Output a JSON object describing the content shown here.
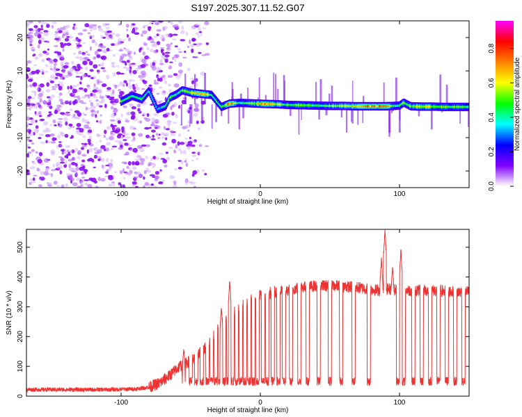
{
  "title": "S197.2025.307.11.52.G07",
  "chart_data": [
    {
      "type": "heatmap",
      "name": "spectrogram",
      "xlabel": "Height of straight line (km)",
      "ylabel": "Frequency (Hz)",
      "xlim": [
        -168,
        150
      ],
      "ylim": [
        -25,
        25
      ],
      "xticks": [
        -100,
        0,
        100
      ],
      "xtick_labels": [
        "-100",
        "0",
        "100"
      ],
      "yticks": [
        -20,
        -10,
        0,
        10,
        20
      ],
      "ytick_labels": [
        "-20",
        "-10",
        "0",
        "10",
        "20"
      ],
      "ridge": [
        {
          "x": -100,
          "f": 0.8,
          "a": 0.5
        },
        {
          "x": -92,
          "f": 2.5,
          "a": 0.45
        },
        {
          "x": -85,
          "f": 1.5,
          "a": 0.5
        },
        {
          "x": -80,
          "f": 4.0,
          "a": 0.4
        },
        {
          "x": -74,
          "f": -1.5,
          "a": 0.35
        },
        {
          "x": -68,
          "f": -0.5,
          "a": 0.45
        },
        {
          "x": -65,
          "f": 2.0,
          "a": 0.55
        },
        {
          "x": -60,
          "f": 3.0,
          "a": 0.4
        },
        {
          "x": -56,
          "f": 4.2,
          "a": 0.55
        },
        {
          "x": -50,
          "f": 3.5,
          "a": 0.6
        },
        {
          "x": -44,
          "f": 3.2,
          "a": 0.75
        },
        {
          "x": -40,
          "f": 3.0,
          "a": 0.7
        },
        {
          "x": -35,
          "f": 2.8,
          "a": 0.5
        },
        {
          "x": -28,
          "f": -0.8,
          "a": 0.45
        },
        {
          "x": -22,
          "f": 0.2,
          "a": 0.85
        },
        {
          "x": -15,
          "f": 0.4,
          "a": 0.45
        },
        {
          "x": -8,
          "f": 0.3,
          "a": 0.55
        },
        {
          "x": 3,
          "f": 0.1,
          "a": 0.75
        },
        {
          "x": 12,
          "f": 0.0,
          "a": 0.6
        },
        {
          "x": 20,
          "f": -0.2,
          "a": 0.5
        },
        {
          "x": 30,
          "f": -0.3,
          "a": 0.55
        },
        {
          "x": 40,
          "f": -0.4,
          "a": 0.5
        },
        {
          "x": 50,
          "f": -0.5,
          "a": 0.55
        },
        {
          "x": 60,
          "f": -0.5,
          "a": 0.65
        },
        {
          "x": 68,
          "f": -0.6,
          "a": 0.7
        },
        {
          "x": 76,
          "f": -0.6,
          "a": 0.8
        },
        {
          "x": 84,
          "f": -0.6,
          "a": 0.75
        },
        {
          "x": 90,
          "f": -0.6,
          "a": 0.85
        },
        {
          "x": 96,
          "f": -0.5,
          "a": 0.45
        },
        {
          "x": 100,
          "f": -0.4,
          "a": 0.5
        },
        {
          "x": 103,
          "f": 0.5,
          "a": 0.55
        },
        {
          "x": 108,
          "f": -0.6,
          "a": 0.6
        },
        {
          "x": 116,
          "f": -0.7,
          "a": 0.65
        },
        {
          "x": 124,
          "f": -0.7,
          "a": 0.6
        },
        {
          "x": 132,
          "f": -0.8,
          "a": 0.55
        },
        {
          "x": 140,
          "f": -0.8,
          "a": 0.55
        },
        {
          "x": 148,
          "f": -0.8,
          "a": 0.5
        }
      ],
      "colorbar": {
        "label": "Normalized spectral amplitude",
        "range": [
          0.0,
          0.96
        ],
        "ticks": [
          0.0,
          0.2,
          0.4,
          0.6,
          0.8
        ],
        "tick_labels": [
          "0.0",
          "0.2",
          "0.4",
          "0.6",
          "0.8"
        ],
        "colors": [
          "#ffffff",
          "#8000ff",
          "#0000ff",
          "#00ffff",
          "#00ff00",
          "#ffff00",
          "#ff8000",
          "#ff0000",
          "#ff00ff"
        ]
      }
    },
    {
      "type": "line",
      "name": "snr",
      "xlabel": "Height of straight line (km)",
      "ylabel": "SNR (10 * v/v)",
      "xlim": [
        -168,
        150
      ],
      "ylim": [
        0,
        560
      ],
      "xticks": [
        -100,
        0,
        100
      ],
      "xtick_labels": [
        "-100",
        "0",
        "100"
      ],
      "yticks": [
        0,
        100,
        200,
        300,
        400,
        500
      ],
      "ytick_labels": [
        "0",
        "100",
        "200",
        "300",
        "400",
        "500"
      ],
      "color": "#ee3333",
      "envelope": {
        "x": [
          -168,
          -140,
          -110,
          -90,
          -80,
          -72,
          -65,
          -58,
          -50,
          -42,
          -35,
          -28,
          -22,
          -15,
          -8,
          0,
          10,
          20,
          28,
          40,
          55,
          70,
          85,
          92,
          100,
          110,
          125,
          140,
          150
        ],
        "y": [
          22,
          22,
          22,
          24,
          30,
          45,
          70,
          100,
          120,
          150,
          190,
          240,
          275,
          300,
          320,
          340,
          350,
          355,
          365,
          370,
          370,
          365,
          355,
          360,
          355,
          355,
          355,
          350,
          350
        ]
      },
      "peaks": [
        {
          "x": 89.5,
          "y": 555
        },
        {
          "x": 87,
          "y": 460
        },
        {
          "x": 95,
          "y": 440
        },
        {
          "x": 101,
          "y": 490
        },
        {
          "x": -55,
          "y": 165
        },
        {
          "x": -22,
          "y": 390
        },
        {
          "x": -28,
          "y": 300
        }
      ],
      "dropouts": [
        -55,
        -50,
        -46,
        -42,
        -38,
        -35,
        -32,
        -29,
        -26,
        -23,
        -20,
        -17,
        -14,
        -11,
        -8,
        -5,
        -2,
        2,
        5,
        9,
        13,
        17,
        22,
        28,
        34,
        42,
        50,
        58,
        67,
        78,
        99,
        103,
        110,
        116,
        122,
        128,
        134,
        140,
        146
      ]
    }
  ]
}
